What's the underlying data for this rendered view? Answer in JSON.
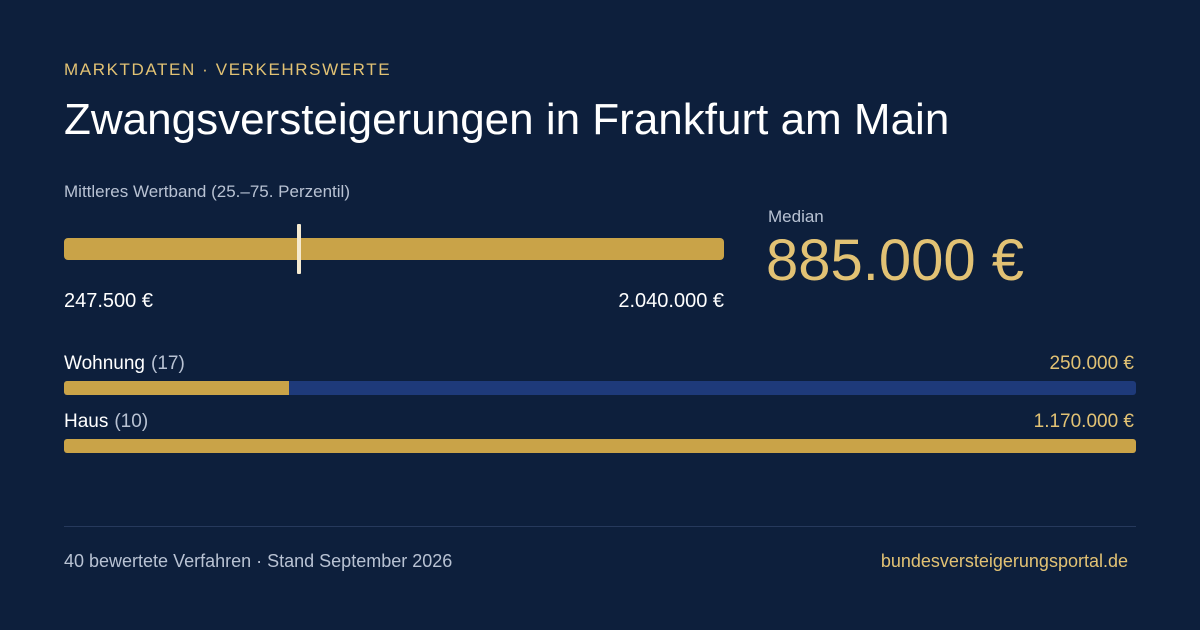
{
  "header": {
    "eyebrow": "MARKTDATEN · VERKEHRSWERTE",
    "title": "Zwangsversteigerungen in Frankfurt am Main"
  },
  "band": {
    "label": "Mittleres Wertband (25.–75. Perzentil)",
    "min_label": "247.500 €",
    "max_label": "2.040.000 €",
    "min_value": 247500,
    "max_value": 2040000,
    "median_value": 885000
  },
  "median": {
    "label": "Median",
    "value": "885.000 €"
  },
  "categories": [
    {
      "label": "Wohnung",
      "count": "(17)",
      "value": "250.000 €",
      "fill_fraction": 0.21
    },
    {
      "label": "Haus",
      "count": "(10)",
      "value": "1.170.000 €",
      "fill_fraction": 1.0
    }
  ],
  "footer": {
    "left": "40 bewertete Verfahren · Stand September 2026",
    "right": "bundesversteigerungsportal.de"
  },
  "colors": {
    "background": "#0d1f3c",
    "gold": "#c9a348",
    "gold_text": "#e2c274",
    "track": "#1e3a7a"
  }
}
